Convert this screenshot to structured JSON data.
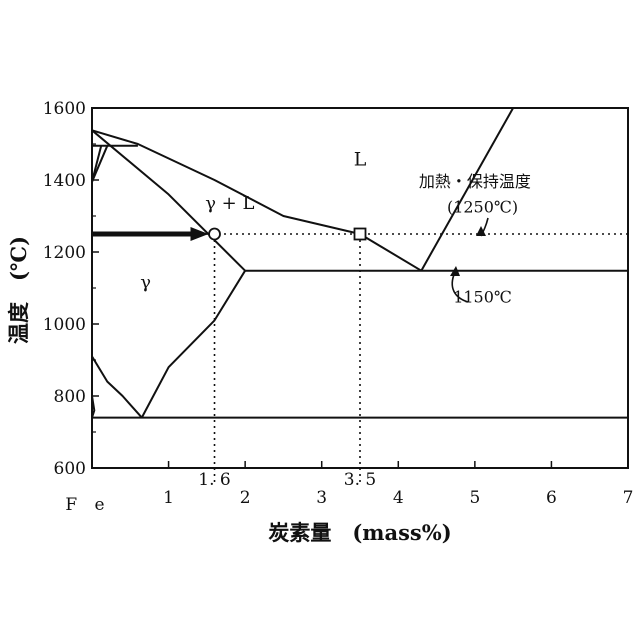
{
  "chart_data": {
    "type": "phase-diagram",
    "xlabel": "炭素量　(mass%)",
    "ylabel": "温度　(℃)",
    "xlim": [
      0,
      7
    ],
    "ylim": [
      600,
      1600
    ],
    "x_ticks": [
      {
        "value": 1,
        "label": "1"
      },
      {
        "value": 2,
        "label": "2"
      },
      {
        "value": 3,
        "label": "3"
      },
      {
        "value": 4,
        "label": "4"
      },
      {
        "value": 5,
        "label": "5"
      },
      {
        "value": 6,
        "label": "6"
      },
      {
        "value": 7,
        "label": "7"
      }
    ],
    "y_ticks": [
      {
        "value": 600,
        "label": "600"
      },
      {
        "value": 800,
        "label": "800"
      },
      {
        "value": 1000,
        "label": "1000"
      },
      {
        "value": 1200,
        "label": "1200"
      },
      {
        "value": 1400,
        "label": "1400"
      },
      {
        "value": 1600,
        "label": "1600"
      }
    ],
    "origin_label": "F e",
    "marked_x_values": [
      {
        "value": 1.6,
        "label": "1. 6"
      },
      {
        "value": 3.5,
        "label": "3. 5"
      }
    ],
    "phase_lines": [
      {
        "name": "liquidus-left",
        "points": [
          [
            0,
            1538
          ],
          [
            0.6,
            1500
          ],
          [
            1.6,
            1400
          ],
          [
            2.5,
            1300
          ],
          [
            3.5,
            1250
          ],
          [
            4.3,
            1148
          ]
        ]
      },
      {
        "name": "liquidus-right",
        "points": [
          [
            4.3,
            1148
          ],
          [
            5.5,
            1600
          ]
        ]
      },
      {
        "name": "solidus",
        "points": [
          [
            0,
            1538
          ],
          [
            1.0,
            1360
          ],
          [
            2.0,
            1148
          ]
        ]
      },
      {
        "name": "eutectic-line",
        "points": [
          [
            2.0,
            1148
          ],
          [
            7.0,
            1148
          ]
        ]
      },
      {
        "name": "acm-line",
        "points": [
          [
            0.65,
            740
          ],
          [
            1.0,
            880
          ],
          [
            1.6,
            1010
          ],
          [
            2.0,
            1148
          ]
        ]
      },
      {
        "name": "a3-line",
        "points": [
          [
            0,
            910
          ],
          [
            0.2,
            840
          ],
          [
            0.4,
            800
          ],
          [
            0.65,
            740
          ]
        ]
      },
      {
        "name": "eutectoid-line",
        "points": [
          [
            0,
            740
          ],
          [
            7.0,
            740
          ]
        ]
      },
      {
        "name": "peritectic-line",
        "points": [
          [
            0,
            1495
          ],
          [
            0.6,
            1495
          ]
        ]
      },
      {
        "name": "delta-left",
        "points": [
          [
            0,
            1395
          ],
          [
            0.12,
            1495
          ]
        ]
      },
      {
        "name": "delta-right",
        "points": [
          [
            0,
            1395
          ],
          [
            0.2,
            1495
          ]
        ]
      },
      {
        "name": "ferrite-edge",
        "points": [
          [
            0,
            740
          ],
          [
            0.03,
            760
          ],
          [
            0,
            800
          ]
        ]
      }
    ],
    "hold_temperature": 1250,
    "markers": [
      {
        "shape": "circle",
        "x": 1.6,
        "y": 1250
      },
      {
        "shape": "square",
        "x": 3.5,
        "y": 1250
      }
    ],
    "arrow": {
      "from": [
        0,
        1250
      ],
      "to": [
        1.6,
        1250
      ]
    },
    "region_labels": [
      {
        "text": "L",
        "x": 3.5,
        "y": 1440
      },
      {
        "text": "γ + L",
        "x": 1.8,
        "y": 1320
      },
      {
        "text": "γ",
        "x": 0.7,
        "y": 1100
      }
    ],
    "annotations": [
      {
        "text": "加熱・保持温度",
        "x": 5.0,
        "y": 1380
      },
      {
        "text": "(1250℃)",
        "x": 5.1,
        "y": 1310
      },
      {
        "text": "1150℃",
        "x": 5.1,
        "y": 1060
      }
    ]
  }
}
